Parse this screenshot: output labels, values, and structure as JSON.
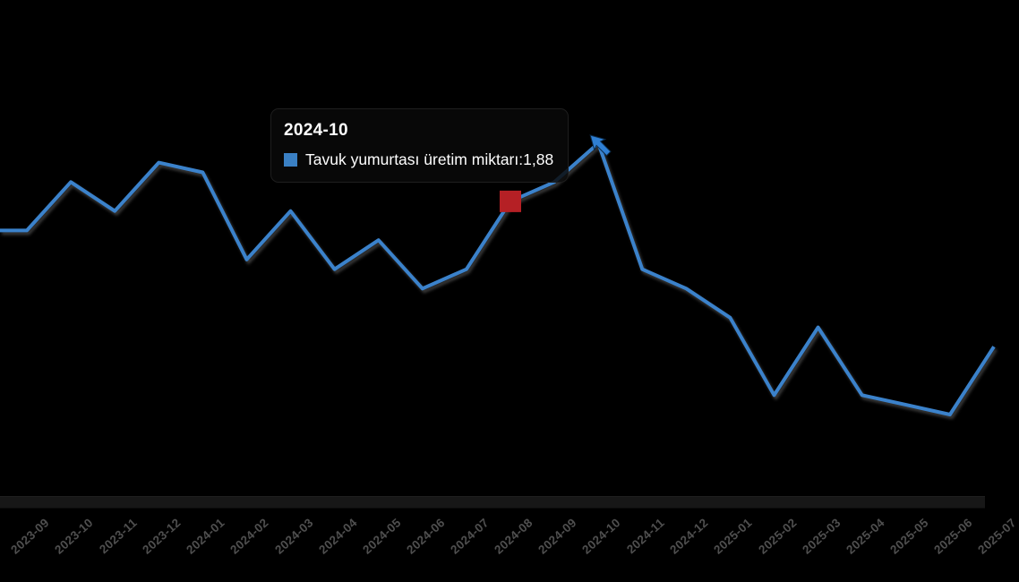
{
  "chart_data": {
    "type": "line",
    "title": "",
    "xlabel": "",
    "ylabel": "",
    "categories": [
      "2023-09",
      "2023-10",
      "2023-11",
      "2023-12",
      "2024-01",
      "2024-02",
      "2024-03",
      "2024-04",
      "2024-05",
      "2024-06",
      "2024-07",
      "2024-08",
      "2024-09",
      "2024-10",
      "2024-11",
      "2024-12",
      "2025-01",
      "2025-02",
      "2025-03",
      "2025-04",
      "2025-05",
      "2025-06",
      "2025-07"
    ],
    "series": [
      {
        "name": "Tavuk yumurtası üretim miktarı",
        "color": "#3b82cb",
        "values": [
          1.79,
          1.84,
          1.81,
          1.86,
          1.85,
          1.76,
          1.81,
          1.75,
          1.78,
          1.73,
          1.75,
          1.82,
          1.84,
          1.88,
          1.75,
          1.73,
          1.7,
          1.62,
          1.69,
          1.62,
          1.61,
          1.6,
          1.67
        ]
      }
    ],
    "ylim": [
      1.52,
      2.01
    ],
    "grid": false,
    "legend_position": "none",
    "background_color": "#000000",
    "marked_point": {
      "category": "2024-08",
      "color": "#b52025"
    },
    "hovered_point": {
      "category": "2024-10",
      "value_label": "1,88"
    }
  },
  "tooltip": {
    "title": "2024-10",
    "series_label": "Tavuk yumurtası üretim miktarı",
    "separator": ": ",
    "value": "1,88",
    "swatch_color": "#3a80c4"
  },
  "colors": {
    "line": "#3b82cb",
    "marker_red": "#b52025",
    "cursor_blue": "#2f7fd4",
    "axis_label": "#4f4f4f"
  }
}
